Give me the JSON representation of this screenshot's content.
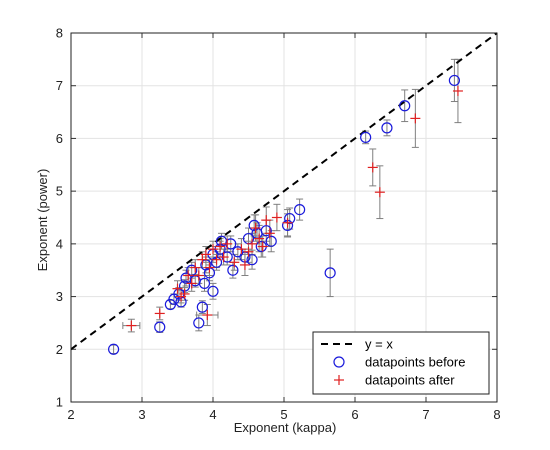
{
  "chart_data": {
    "type": "scatter",
    "title": "",
    "xlabel": "Exponent (kappa)",
    "ylabel": "Exponent (power)",
    "xlim": [
      2,
      8
    ],
    "ylim": [
      1,
      8
    ],
    "xticks": [
      "2",
      "3",
      "4",
      "5",
      "6",
      "7",
      "8"
    ],
    "yticks": [
      "1",
      "2",
      "3",
      "4",
      "5",
      "6",
      "7",
      "8"
    ],
    "grid": true,
    "legend_position": "bottom-right",
    "series": [
      {
        "name": "y = x",
        "kind": "line",
        "style": "dashed",
        "color": "#000000",
        "x": [
          2,
          8
        ],
        "y": [
          2,
          8
        ]
      },
      {
        "name": "datapoints before",
        "kind": "scatter",
        "marker": "circle",
        "color": "#1a1adb",
        "points": [
          {
            "x": 2.6,
            "y": 2.0,
            "yerr": 0.08
          },
          {
            "x": 3.25,
            "y": 2.42,
            "yerr": 0.1
          },
          {
            "x": 3.4,
            "y": 2.85,
            "yerr": 0.08
          },
          {
            "x": 3.45,
            "y": 2.95,
            "yerr": 0.1
          },
          {
            "x": 3.52,
            "y": 3.05,
            "yerr": 0.12
          },
          {
            "x": 3.55,
            "y": 2.9,
            "yerr": 0.1
          },
          {
            "x": 3.6,
            "y": 3.2,
            "yerr": 0.12
          },
          {
            "x": 3.62,
            "y": 3.35,
            "yerr": 0.15
          },
          {
            "x": 3.7,
            "y": 3.5,
            "yerr": 0.15
          },
          {
            "x": 3.75,
            "y": 3.3,
            "yerr": 0.12
          },
          {
            "x": 3.8,
            "y": 2.5,
            "yerr": 0.15
          },
          {
            "x": 3.85,
            "y": 2.8,
            "yerr": 0.12
          },
          {
            "x": 3.88,
            "y": 3.25,
            "yerr": 0.15
          },
          {
            "x": 3.9,
            "y": 3.6,
            "yerr": 0.15
          },
          {
            "x": 3.95,
            "y": 3.45,
            "yerr": 0.15
          },
          {
            "x": 4.0,
            "y": 3.1,
            "yerr": 0.15
          },
          {
            "x": 4.0,
            "y": 3.8,
            "yerr": 0.15
          },
          {
            "x": 4.05,
            "y": 3.65,
            "yerr": 0.15
          },
          {
            "x": 4.1,
            "y": 3.9,
            "yerr": 0.15
          },
          {
            "x": 4.12,
            "y": 4.05,
            "yerr": 0.15
          },
          {
            "x": 4.2,
            "y": 3.75,
            "yerr": 0.15
          },
          {
            "x": 4.25,
            "y": 4.0,
            "yerr": 0.15
          },
          {
            "x": 4.28,
            "y": 3.5,
            "yerr": 0.15
          },
          {
            "x": 4.35,
            "y": 3.85,
            "yerr": 0.15
          },
          {
            "x": 4.45,
            "y": 3.75,
            "yerr": 0.15
          },
          {
            "x": 4.5,
            "y": 4.1,
            "yerr": 0.2
          },
          {
            "x": 4.55,
            "y": 3.7,
            "yerr": 0.18
          },
          {
            "x": 4.58,
            "y": 4.35,
            "yerr": 0.2
          },
          {
            "x": 4.62,
            "y": 4.2,
            "yerr": 0.2
          },
          {
            "x": 4.68,
            "y": 3.95,
            "yerr": 0.2
          },
          {
            "x": 4.75,
            "y": 4.25,
            "yerr": 0.2
          },
          {
            "x": 4.82,
            "y": 4.05,
            "yerr": 0.2
          },
          {
            "x": 5.05,
            "y": 4.35,
            "yerr": 0.22
          },
          {
            "x": 5.08,
            "y": 4.48,
            "yerr": 0.2
          },
          {
            "x": 5.22,
            "y": 4.65,
            "yerr": 0.2
          },
          {
            "x": 5.65,
            "y": 3.45,
            "yerr": 0.45
          },
          {
            "x": 6.15,
            "y": 6.02,
            "yerr": 0.12
          },
          {
            "x": 6.45,
            "y": 6.2,
            "yerr": 0.15
          },
          {
            "x": 6.7,
            "y": 6.62,
            "yerr": 0.3
          },
          {
            "x": 7.4,
            "y": 7.1,
            "yerr": 0.4
          }
        ]
      },
      {
        "name": "datapoints after",
        "kind": "scatter",
        "marker": "plus",
        "color": "#e02020",
        "points": [
          {
            "x": 2.85,
            "y": 2.45,
            "yerr": 0.12,
            "xerr": 0.12
          },
          {
            "x": 3.25,
            "y": 2.68,
            "yerr": 0.12
          },
          {
            "x": 3.5,
            "y": 3.15,
            "yerr": 0.15
          },
          {
            "x": 3.55,
            "y": 3.0,
            "yerr": 0.12
          },
          {
            "x": 3.6,
            "y": 3.05,
            "yerr": 0.12
          },
          {
            "x": 3.65,
            "y": 3.4,
            "yerr": 0.15
          },
          {
            "x": 3.7,
            "y": 3.25,
            "yerr": 0.15
          },
          {
            "x": 3.75,
            "y": 3.55,
            "yerr": 0.15
          },
          {
            "x": 3.8,
            "y": 3.4,
            "yerr": 0.15
          },
          {
            "x": 3.85,
            "y": 3.7,
            "yerr": 0.15
          },
          {
            "x": 3.9,
            "y": 3.8,
            "yerr": 0.15
          },
          {
            "x": 3.92,
            "y": 2.65,
            "yerr": 0.2,
            "xerr": 0.15
          },
          {
            "x": 3.95,
            "y": 3.55,
            "yerr": 0.15
          },
          {
            "x": 4.0,
            "y": 3.9,
            "yerr": 0.15
          },
          {
            "x": 4.05,
            "y": 3.7,
            "yerr": 0.15
          },
          {
            "x": 4.1,
            "y": 3.95,
            "yerr": 0.15
          },
          {
            "x": 4.15,
            "y": 3.75,
            "yerr": 0.15
          },
          {
            "x": 4.2,
            "y": 4.0,
            "yerr": 0.15
          },
          {
            "x": 4.3,
            "y": 3.65,
            "yerr": 0.15
          },
          {
            "x": 4.4,
            "y": 3.9,
            "yerr": 0.2
          },
          {
            "x": 4.45,
            "y": 3.6,
            "yerr": 0.2
          },
          {
            "x": 4.5,
            "y": 3.85,
            "yerr": 0.2
          },
          {
            "x": 4.55,
            "y": 4.0,
            "yerr": 0.2
          },
          {
            "x": 4.6,
            "y": 4.3,
            "yerr": 0.25
          },
          {
            "x": 4.65,
            "y": 4.1,
            "yerr": 0.25
          },
          {
            "x": 4.7,
            "y": 3.95,
            "yerr": 0.2
          },
          {
            "x": 4.75,
            "y": 4.45,
            "yerr": 0.25
          },
          {
            "x": 4.8,
            "y": 4.2,
            "yerr": 0.25
          },
          {
            "x": 4.9,
            "y": 4.5,
            "yerr": 0.25
          },
          {
            "x": 5.05,
            "y": 4.4,
            "yerr": 0.25
          },
          {
            "x": 6.25,
            "y": 5.45,
            "yerr": 0.35
          },
          {
            "x": 6.35,
            "y": 4.98,
            "yerr": 0.5
          },
          {
            "x": 6.85,
            "y": 6.38,
            "yerr": 0.55
          },
          {
            "x": 7.45,
            "y": 6.9,
            "yerr": 0.6
          }
        ]
      }
    ]
  }
}
